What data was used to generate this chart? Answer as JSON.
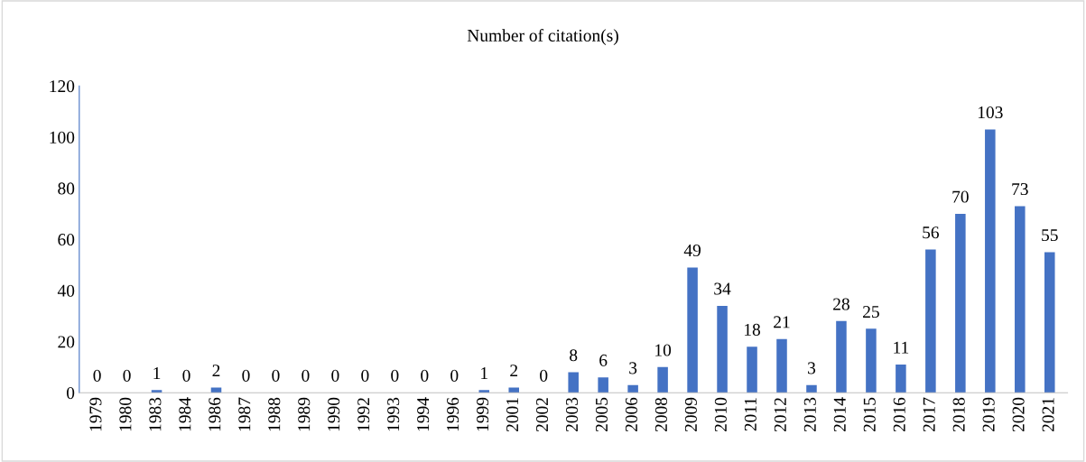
{
  "chart_data": {
    "type": "bar",
    "title": "Number of citation(s)",
    "categories": [
      "1979",
      "1980",
      "1983",
      "1984",
      "1986",
      "1987",
      "1988",
      "1989",
      "1990",
      "1992",
      "1993",
      "1994",
      "1996",
      "1999",
      "2001",
      "2002",
      "2003",
      "2005",
      "2006",
      "2008",
      "2009",
      "2010",
      "2011",
      "2012",
      "2013",
      "2014",
      "2015",
      "2016",
      "2017",
      "2018",
      "2019",
      "2020",
      "2021"
    ],
    "values": [
      0,
      0,
      1,
      0,
      2,
      0,
      0,
      0,
      0,
      0,
      0,
      0,
      0,
      1,
      2,
      0,
      8,
      6,
      3,
      10,
      49,
      34,
      18,
      21,
      3,
      28,
      25,
      11,
      56,
      70,
      103,
      73,
      55
    ],
    "color": "#4472c4",
    "ylim": [
      0,
      120
    ],
    "yticks": [
      0,
      20,
      40,
      60,
      80,
      100,
      120
    ],
    "grid": false,
    "data_labels": true
  }
}
